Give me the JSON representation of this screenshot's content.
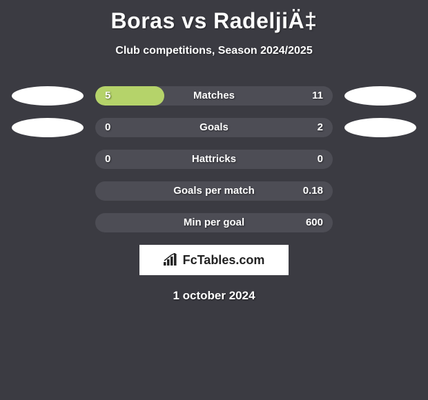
{
  "header": {
    "title": "Boras vs RadeljiÄ‡",
    "subtitle": "Club competitions, Season 2024/2025"
  },
  "chart": {
    "background_color": "#3b3b42",
    "bar_track_color": "#4d4d55",
    "left_fill_color": "#b5d36a",
    "right_fill_color": "#e88a5c",
    "text_color": "#ffffff",
    "badge_color": "#ffffff",
    "rows": [
      {
        "label": "Matches",
        "left": "5",
        "right": "11",
        "left_pct": 29,
        "right_pct": 0,
        "show_left_badge": true,
        "show_right_badge": true
      },
      {
        "label": "Goals",
        "left": "0",
        "right": "2",
        "left_pct": 0,
        "right_pct": 0,
        "show_left_badge": true,
        "show_right_badge": true
      },
      {
        "label": "Hattricks",
        "left": "0",
        "right": "0",
        "left_pct": 0,
        "right_pct": 0,
        "show_left_badge": false,
        "show_right_badge": false
      },
      {
        "label": "Goals per match",
        "left": "",
        "right": "0.18",
        "left_pct": 0,
        "right_pct": 0,
        "show_left_badge": false,
        "show_right_badge": false
      },
      {
        "label": "Min per goal",
        "left": "",
        "right": "600",
        "left_pct": 0,
        "right_pct": 0,
        "show_left_badge": false,
        "show_right_badge": false
      }
    ]
  },
  "footer": {
    "brand": "FcTables.com",
    "date": "1 october 2024"
  }
}
